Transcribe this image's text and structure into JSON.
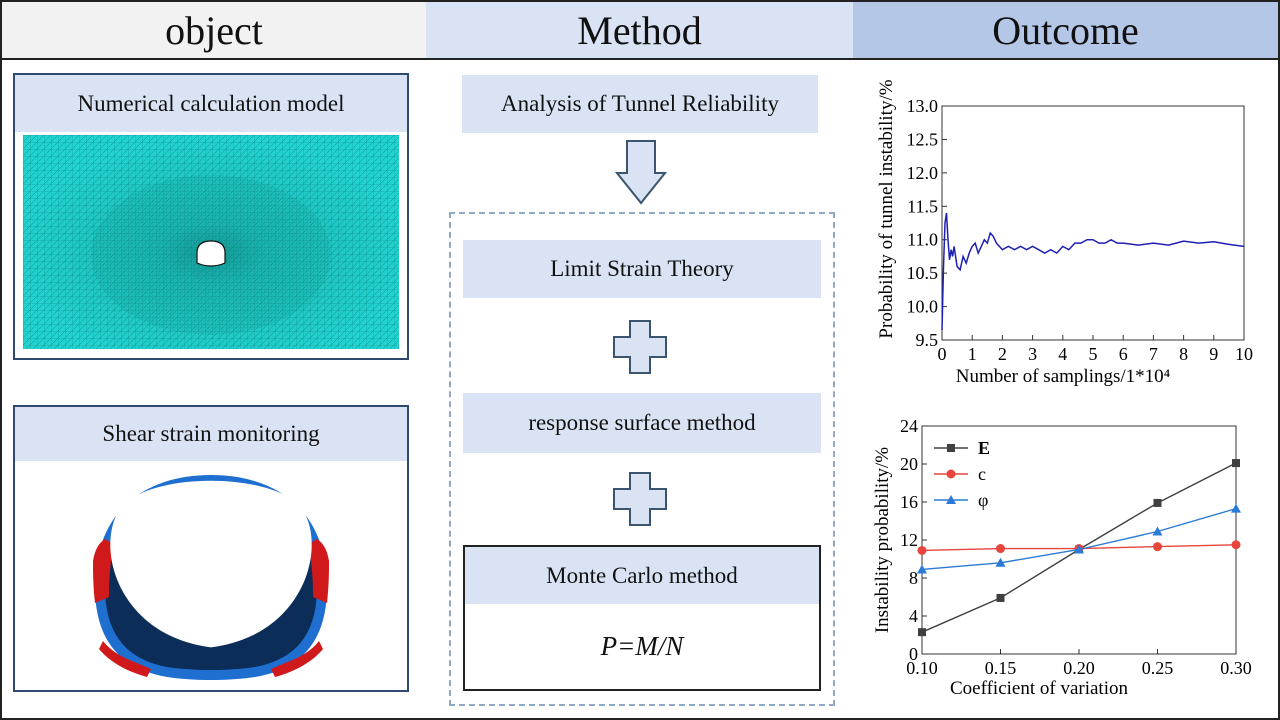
{
  "headers": {
    "object": "object",
    "method": "Method",
    "outcome": "Outcome"
  },
  "object_panels": {
    "numerical_model": "Numerical calculation model",
    "shear_strain": "Shear strain monitoring"
  },
  "method": {
    "analysis": "Analysis of Tunnel Reliability",
    "limit_strain": "Limit Strain Theory",
    "response_surface": "response surface method",
    "monte_carlo": "Monte Carlo method",
    "formula": "P=M/N"
  },
  "colors": {
    "mesh": "#1fd3cf",
    "ring": "#1f6fd1",
    "ring_dark": "#0b2d57",
    "strain_red": "#d0191b",
    "header_obj": "#f2f2f2",
    "header_method": "#dae3f3",
    "header_outcome": "#b4c7e7"
  },
  "chart_data": [
    {
      "type": "line",
      "xlabel": "Number of samplings/1*10⁴",
      "ylabel": "Probability of tunnel instability/%",
      "xlim": [
        0,
        10
      ],
      "ylim": [
        9.5,
        13.0
      ],
      "x_ticks": [
        0,
        1,
        2,
        3,
        4,
        5,
        6,
        7,
        8,
        9,
        10
      ],
      "y_ticks": [
        "9.5",
        "10.0",
        "10.5",
        "11.0",
        "11.5",
        "12.0",
        "12.5",
        "13.0"
      ],
      "series": [
        {
          "color": "#1f1fb4",
          "x": [
            0.0,
            0.05,
            0.1,
            0.15,
            0.2,
            0.25,
            0.3,
            0.35,
            0.4,
            0.5,
            0.6,
            0.7,
            0.8,
            0.9,
            1.0,
            1.1,
            1.2,
            1.3,
            1.4,
            1.5,
            1.6,
            1.7,
            1.8,
            1.9,
            2.0,
            2.2,
            2.4,
            2.6,
            2.8,
            3.0,
            3.2,
            3.4,
            3.6,
            3.8,
            4.0,
            4.2,
            4.4,
            4.6,
            4.8,
            5.0,
            5.2,
            5.4,
            5.6,
            5.8,
            6.0,
            6.5,
            7.0,
            7.5,
            8.0,
            8.5,
            9.0,
            9.5,
            10.0
          ],
          "y": [
            9.65,
            10.6,
            11.25,
            11.4,
            11.0,
            10.7,
            10.85,
            10.75,
            10.9,
            10.6,
            10.55,
            10.75,
            10.65,
            10.8,
            10.9,
            10.95,
            10.8,
            10.9,
            11.0,
            10.95,
            11.1,
            11.05,
            10.95,
            10.9,
            10.85,
            10.9,
            10.85,
            10.9,
            10.85,
            10.9,
            10.85,
            10.8,
            10.85,
            10.8,
            10.9,
            10.85,
            10.95,
            10.95,
            11.0,
            11.0,
            10.95,
            10.95,
            11.0,
            10.95,
            10.95,
            10.92,
            10.95,
            10.92,
            10.98,
            10.95,
            10.97,
            10.93,
            10.9
          ]
        }
      ]
    },
    {
      "type": "line",
      "xlabel": "Coefficient of variation",
      "ylabel": "Instability probability/%",
      "xlim": [
        0.1,
        0.3
      ],
      "ylim": [
        0,
        24
      ],
      "x_ticks": [
        "0.10",
        "0.15",
        "0.20",
        "0.25",
        "0.30"
      ],
      "x_tick_values": [
        0.1,
        0.15,
        0.2,
        0.25,
        0.3
      ],
      "y_ticks": [
        0,
        4,
        8,
        12,
        16,
        20,
        24
      ],
      "legend": "top-left",
      "x": [
        0.1,
        0.15,
        0.2,
        0.25,
        0.3
      ],
      "series": [
        {
          "name": "E",
          "color": "#404040",
          "marker": "square",
          "values": [
            2.3,
            5.9,
            11.0,
            15.9,
            20.1
          ]
        },
        {
          "name": "c",
          "color": "#e8453c",
          "marker": "circle",
          "values": [
            10.9,
            11.1,
            11.1,
            11.3,
            11.5
          ]
        },
        {
          "name": "φ",
          "color": "#2b7bd6",
          "marker": "triangle",
          "values": [
            8.9,
            9.6,
            11.0,
            12.9,
            15.3
          ]
        }
      ]
    }
  ]
}
